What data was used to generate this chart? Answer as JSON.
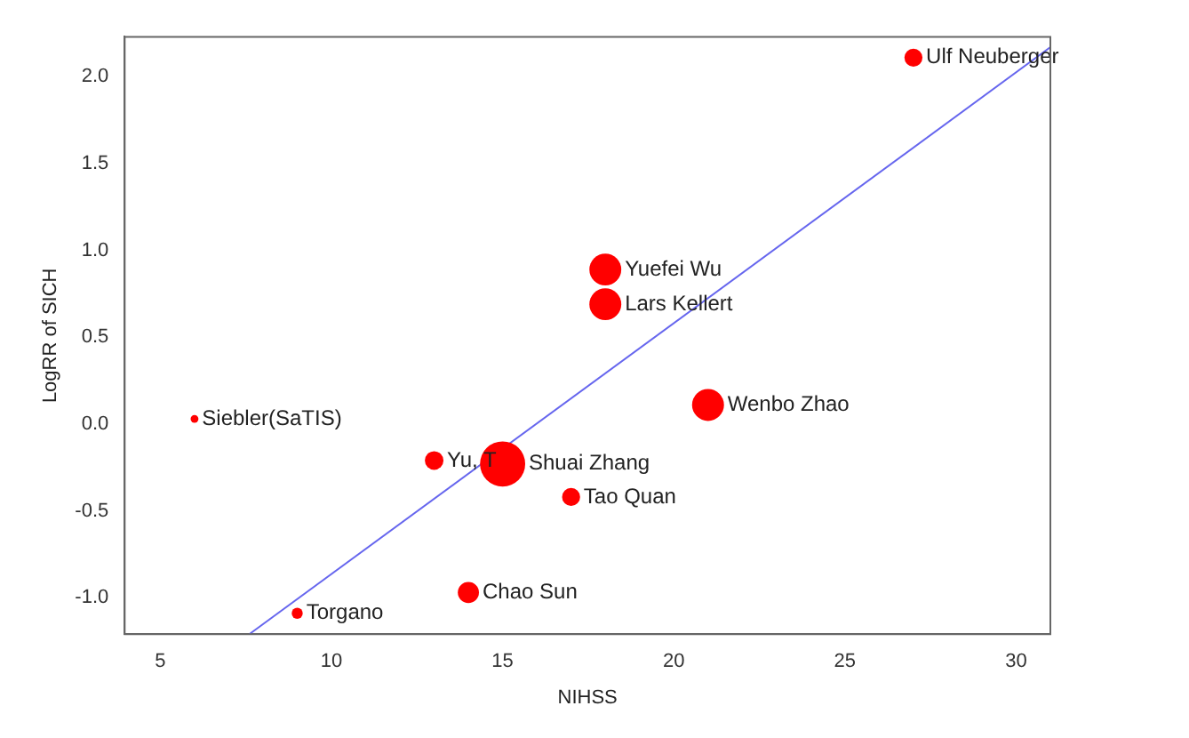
{
  "chart_data": {
    "type": "bubble",
    "xlabel": "NIHSS",
    "ylabel": "LogRR of SICH",
    "xlim": [
      3.96,
      31.0
    ],
    "xticks": [
      5,
      10,
      15,
      20,
      25,
      30
    ],
    "ylim": [
      -1.21,
      2.23
    ],
    "yticks": [
      {
        "value": -1,
        "label": "-1.0"
      },
      -0.5,
      {
        "value": 0,
        "label": "0.0"
      },
      0.5,
      {
        "value": 1,
        "label": "1.0"
      },
      1.5,
      {
        "value": 2,
        "label": "2.0"
      }
    ],
    "grid": false,
    "legend": false,
    "series": [
      {
        "type": "bubble",
        "color": "#ff0000",
        "x": [
          6,
          13,
          15,
          14,
          9,
          27,
          18,
          18,
          21,
          17
        ],
        "values": [
          0.03,
          -0.21,
          -0.23,
          -0.97,
          -1.09,
          2.11,
          0.89,
          0.69,
          0.11,
          -0.42
        ],
        "sizes": [
          0.03,
          0.17,
          1,
          0.22,
          0.06,
          0.16,
          0.5,
          0.5,
          0.5,
          0.16
        ]
      },
      {
        "type": "line",
        "color": "#6666ee",
        "x": [
          7.6,
          31.0
        ],
        "values": [
          -1.21,
          2.17
        ]
      }
    ],
    "annotations": [
      {
        "text": "Siebler(SaTIS)",
        "x": 6,
        "y": 0.03
      },
      {
        "text": "Yu, T",
        "x": 13,
        "y": -0.21
      },
      {
        "text": "Shuai Zhang",
        "x": 15,
        "y": -0.23
      },
      {
        "text": "Chao Sun",
        "x": 14,
        "y": -0.97
      },
      {
        "text": "Torgano",
        "x": 9,
        "y": -1.09
      },
      {
        "text": "Ulf Neuberger",
        "x": 27,
        "y": 2.11
      },
      {
        "text": "Yuefei Wu",
        "x": 18,
        "y": 0.89
      },
      {
        "text": "Lars Kellert",
        "x": 18,
        "y": 0.69
      },
      {
        "text": "Wenbo Zhao",
        "x": 21,
        "y": 0.11
      },
      {
        "text": "Tao Quan",
        "x": 17,
        "y": -0.42
      }
    ]
  }
}
